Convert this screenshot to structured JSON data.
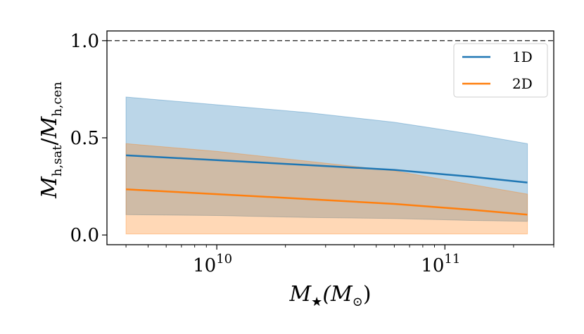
{
  "chart_data": {
    "type": "area",
    "x_scale": "log",
    "xlabel_parts": {
      "base": "M",
      "sub": "★",
      "rest": "(M",
      "rest_sub": "⊙",
      "close": ")"
    },
    "ylabel_parts": {
      "num": "M",
      "num_sub": "h,sat",
      "sep": "/",
      "den": "M",
      "den_sub": "h,cen"
    },
    "xlim": [
      3300000000.0,
      300000000000.0
    ],
    "ylim": [
      -0.05,
      1.05
    ],
    "x_ticks": [
      {
        "value": 10000000000.0,
        "base": "10",
        "exp": "10"
      },
      {
        "value": 100000000000.0,
        "base": "10",
        "exp": "11"
      }
    ],
    "y_ticks": [
      {
        "value": 0.0,
        "label": "0.0"
      },
      {
        "value": 0.5,
        "label": "0.5"
      },
      {
        "value": 1.0,
        "label": "1.0"
      }
    ],
    "reference_line": {
      "y": 1.0,
      "style": "dashed",
      "color": "#000000"
    },
    "series": [
      {
        "name": "1D",
        "color": "#1f77b4",
        "x": [
          4000000000.0,
          10000000000.0,
          25000000000.0,
          60000000000.0,
          130000000000.0,
          230000000000.0
        ],
        "y": [
          0.41,
          0.385,
          0.36,
          0.335,
          0.3,
          0.27
        ],
        "upper": [
          0.71,
          0.67,
          0.63,
          0.58,
          0.52,
          0.47
        ],
        "lower": [
          0.105,
          0.1,
          0.09,
          0.085,
          0.075,
          0.07
        ]
      },
      {
        "name": "2D",
        "color": "#ff7f0e",
        "x": [
          4000000000.0,
          10000000000.0,
          25000000000.0,
          60000000000.0,
          130000000000.0,
          230000000000.0
        ],
        "y": [
          0.235,
          0.21,
          0.185,
          0.16,
          0.13,
          0.105
        ],
        "upper": [
          0.47,
          0.43,
          0.38,
          0.33,
          0.26,
          0.21
        ],
        "lower": [
          0.005,
          0.005,
          0.005,
          0.005,
          0.005,
          0.005
        ]
      }
    ],
    "legend_position": "top-right"
  }
}
